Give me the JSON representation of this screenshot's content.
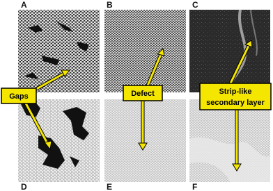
{
  "panels": [
    {
      "label": "A"
    },
    {
      "label": "B"
    },
    {
      "label": "C"
    },
    {
      "label": "D"
    },
    {
      "label": "E"
    },
    {
      "label": "F"
    }
  ],
  "callouts": [
    {
      "lines": [
        "Gaps"
      ]
    },
    {
      "lines": [
        "Defect"
      ]
    },
    {
      "lines": [
        "Strip-like",
        "secondary layer"
      ]
    }
  ]
}
